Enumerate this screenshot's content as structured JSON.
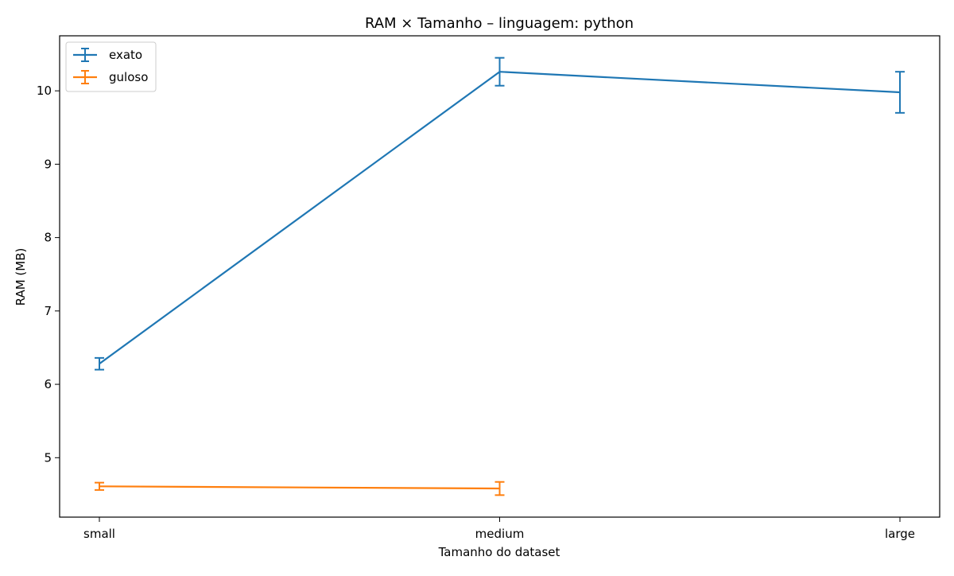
{
  "chart_data": {
    "type": "line",
    "title": "RAM × Tamanho – linguagem: python",
    "xlabel": "Tamanho do dataset",
    "ylabel": "RAM (MB)",
    "categories": [
      "small",
      "medium",
      "large"
    ],
    "ylim": [
      4.19,
      10.75
    ],
    "yticks": [
      5,
      6,
      7,
      8,
      9,
      10
    ],
    "grid": false,
    "legend_position": "top-left",
    "series": [
      {
        "name": "exato",
        "color": "#1f77b4",
        "values": [
          6.28,
          10.26,
          9.98
        ],
        "errors": [
          0.08,
          0.19,
          0.28
        ]
      },
      {
        "name": "guloso",
        "color": "#ff7f0e",
        "values": [
          4.61,
          4.58,
          null
        ],
        "errors": [
          0.05,
          0.09,
          null
        ]
      }
    ]
  }
}
